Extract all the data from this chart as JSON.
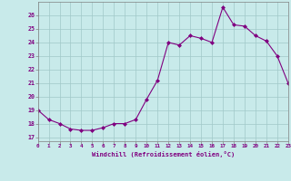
{
  "hours": [
    0,
    1,
    2,
    3,
    4,
    5,
    6,
    7,
    8,
    9,
    10,
    11,
    12,
    13,
    14,
    15,
    16,
    17,
    18,
    19,
    20,
    21,
    22,
    23
  ],
  "wc": [
    19.0,
    18.3,
    18.0,
    17.6,
    17.5,
    17.5,
    17.7,
    18.0,
    18.0,
    18.3,
    19.8,
    21.2,
    24.0,
    23.8,
    24.5,
    24.3,
    24.0,
    26.6,
    25.3,
    25.2,
    24.5,
    24.1,
    23.0,
    21.0
  ],
  "line_color": "#800080",
  "marker_color": "#800080",
  "bg_color": "#c8eaea",
  "grid_color": "#a0c8c8",
  "xlabel": "Windchill (Refroidissement éolien,°C)",
  "yticks": [
    17,
    18,
    19,
    20,
    21,
    22,
    23,
    24,
    25,
    26
  ],
  "xlim": [
    0,
    23
  ],
  "ylim": [
    16.7,
    27.0
  ]
}
